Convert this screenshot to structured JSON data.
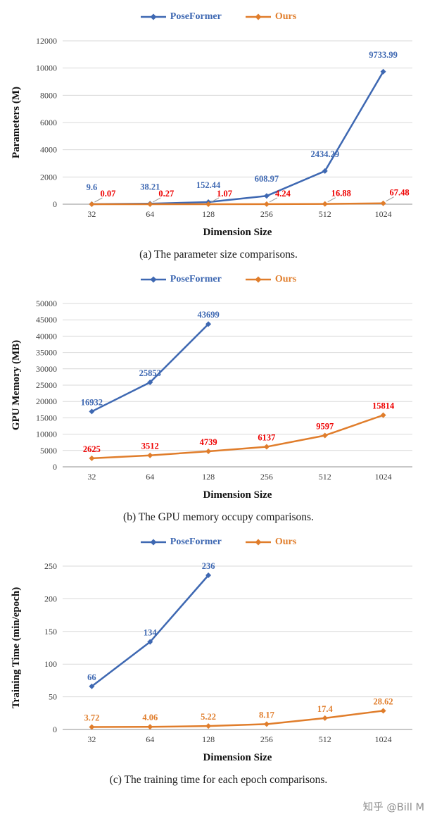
{
  "watermark": "知乎 @Bill M",
  "chart_data": [
    {
      "type": "line",
      "caption": "(a) The parameter size comparisons.",
      "xlabel": "Dimension Size",
      "ylabel": "Parameters (M)",
      "categories": [
        "32",
        "64",
        "128",
        "256",
        "512",
        "1024"
      ],
      "ylim": [
        0,
        12000
      ],
      "ytick_step": 2000,
      "grid": true,
      "legend_position": "top",
      "series": [
        {
          "name": "PoseFormer",
          "color": "#3E68B2",
          "label_color": "#3E68B2",
          "label_position": "above-high",
          "values": [
            9.6,
            38.21,
            152.44,
            608.97,
            2434.29,
            9733.99
          ],
          "labels": [
            "9.6",
            "38.21",
            "152.44",
            "608.97",
            "2434.29",
            "9733.99"
          ]
        },
        {
          "name": "Ours",
          "color": "#E07D2B",
          "label_color": "#EE0000",
          "label_position": "above-right",
          "values": [
            0.07,
            0.27,
            1.07,
            4.24,
            16.88,
            67.48
          ],
          "labels": [
            "0.07",
            "0.27",
            "1.07",
            "4.24",
            "16.88",
            "67.48"
          ]
        }
      ]
    },
    {
      "type": "line",
      "caption": "(b) The GPU memory occupy comparisons.",
      "xlabel": "Dimension Size",
      "ylabel": "GPU Memory (MB)",
      "categories": [
        "32",
        "64",
        "128",
        "256",
        "512",
        "1024"
      ],
      "ylim": [
        0,
        50000
      ],
      "ytick_step": 5000,
      "grid": true,
      "legend_position": "top",
      "series": [
        {
          "name": "PoseFormer",
          "color": "#3E68B2",
          "label_color": "#3E68B2",
          "label_position": "above",
          "values": [
            16932,
            25853,
            43699,
            null,
            null,
            null
          ],
          "labels": [
            "16932",
            "25853",
            "43699"
          ]
        },
        {
          "name": "Ours",
          "color": "#E07D2B",
          "label_color": "#EE0000",
          "label_position": "above",
          "values": [
            2625,
            3512,
            4739,
            6137,
            9597,
            15814
          ],
          "labels": [
            "2625",
            "3512",
            "4739",
            "6137",
            "9597",
            "15814"
          ]
        }
      ]
    },
    {
      "type": "line",
      "caption": "(c) The training time for each epoch comparisons.",
      "xlabel": "Dimension Size",
      "ylabel": "Training  Time (min/epoch)",
      "categories": [
        "32",
        "64",
        "128",
        "256",
        "512",
        "1024"
      ],
      "ylim": [
        0,
        250
      ],
      "ytick_step": 50,
      "grid": true,
      "legend_position": "top",
      "series": [
        {
          "name": "PoseFormer",
          "color": "#3E68B2",
          "label_color": "#3E68B2",
          "label_position": "above",
          "values": [
            66,
            134,
            236,
            null,
            null,
            null
          ],
          "labels": [
            "66",
            "134",
            "236"
          ]
        },
        {
          "name": "Ours",
          "color": "#E07D2B",
          "label_color": "#E07D2B",
          "label_position": "above",
          "values": [
            3.72,
            4.06,
            5.22,
            8.17,
            17.4,
            28.62
          ],
          "labels": [
            "3.72",
            "4.06",
            "5.22",
            "8.17",
            "17.4",
            "28.62"
          ]
        }
      ]
    }
  ]
}
